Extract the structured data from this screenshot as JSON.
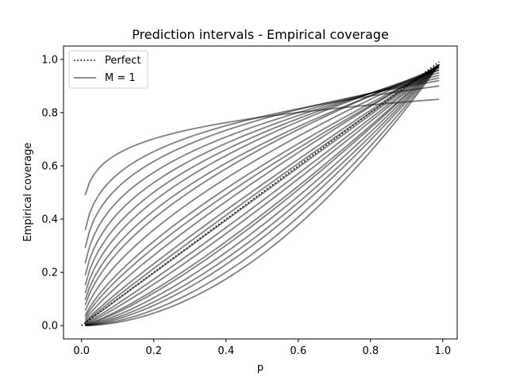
{
  "chart_data": {
    "type": "line",
    "title": "Prediction intervals - Empirical coverage",
    "xlabel": "p",
    "ylabel": "Empirical coverage",
    "xlim": [
      -0.05,
      1.04
    ],
    "ylim": [
      -0.05,
      1.05
    ],
    "xticks": [
      0.0,
      0.2,
      0.4,
      0.6,
      0.8,
      1.0
    ],
    "yticks": [
      0.0,
      0.2,
      0.4,
      0.6,
      0.8,
      1.0
    ],
    "xtick_labels": [
      "0.0",
      "0.2",
      "0.4",
      "0.6",
      "0.8",
      "1.0"
    ],
    "ytick_labels": [
      "0.0",
      "0.2",
      "0.4",
      "0.6",
      "0.8",
      "1.0"
    ],
    "grid": false,
    "legend": {
      "placement": "upper-left",
      "entries": [
        {
          "label": "Perfect",
          "style": "dotted",
          "color": "#000000"
        },
        {
          "label": "M = 1",
          "style": "solid",
          "color": "#808080"
        }
      ]
    },
    "perfect_line": {
      "x": [
        0.0,
        0.99
      ],
      "y": [
        0.0,
        0.99
      ]
    },
    "curve_color": "#000000",
    "curve_opacity": 0.5,
    "x_range": [
      0.01,
      0.99
    ],
    "curves": [
      {
        "k": 1.9,
        "end": 0.98
      },
      {
        "k": 1.75,
        "end": 0.98
      },
      {
        "k": 1.6,
        "end": 0.98
      },
      {
        "k": 1.5,
        "end": 0.98
      },
      {
        "k": 1.4,
        "end": 0.98
      },
      {
        "k": 1.3,
        "end": 0.98
      },
      {
        "k": 1.25,
        "end": 0.98
      },
      {
        "k": 1.15,
        "end": 0.98
      },
      {
        "k": 1.08,
        "end": 0.98
      },
      {
        "k": 1.0,
        "end": 0.98
      },
      {
        "k": 0.95,
        "end": 0.98
      },
      {
        "k": 0.9,
        "end": 0.98
      },
      {
        "k": 0.82,
        "end": 0.98
      },
      {
        "k": 0.75,
        "end": 0.97
      },
      {
        "k": 0.7,
        "end": 0.97
      },
      {
        "k": 0.62,
        "end": 0.97
      },
      {
        "k": 0.55,
        "end": 0.97
      },
      {
        "k": 0.5,
        "end": 0.96
      },
      {
        "k": 0.45,
        "end": 0.96
      },
      {
        "k": 0.4,
        "end": 0.95
      },
      {
        "k": 0.35,
        "end": 0.94
      },
      {
        "k": 0.3,
        "end": 0.93
      },
      {
        "k": 0.25,
        "end": 0.92
      },
      {
        "k": 0.2,
        "end": 0.9
      },
      {
        "k": 0.12,
        "end": 0.85
      }
    ]
  }
}
